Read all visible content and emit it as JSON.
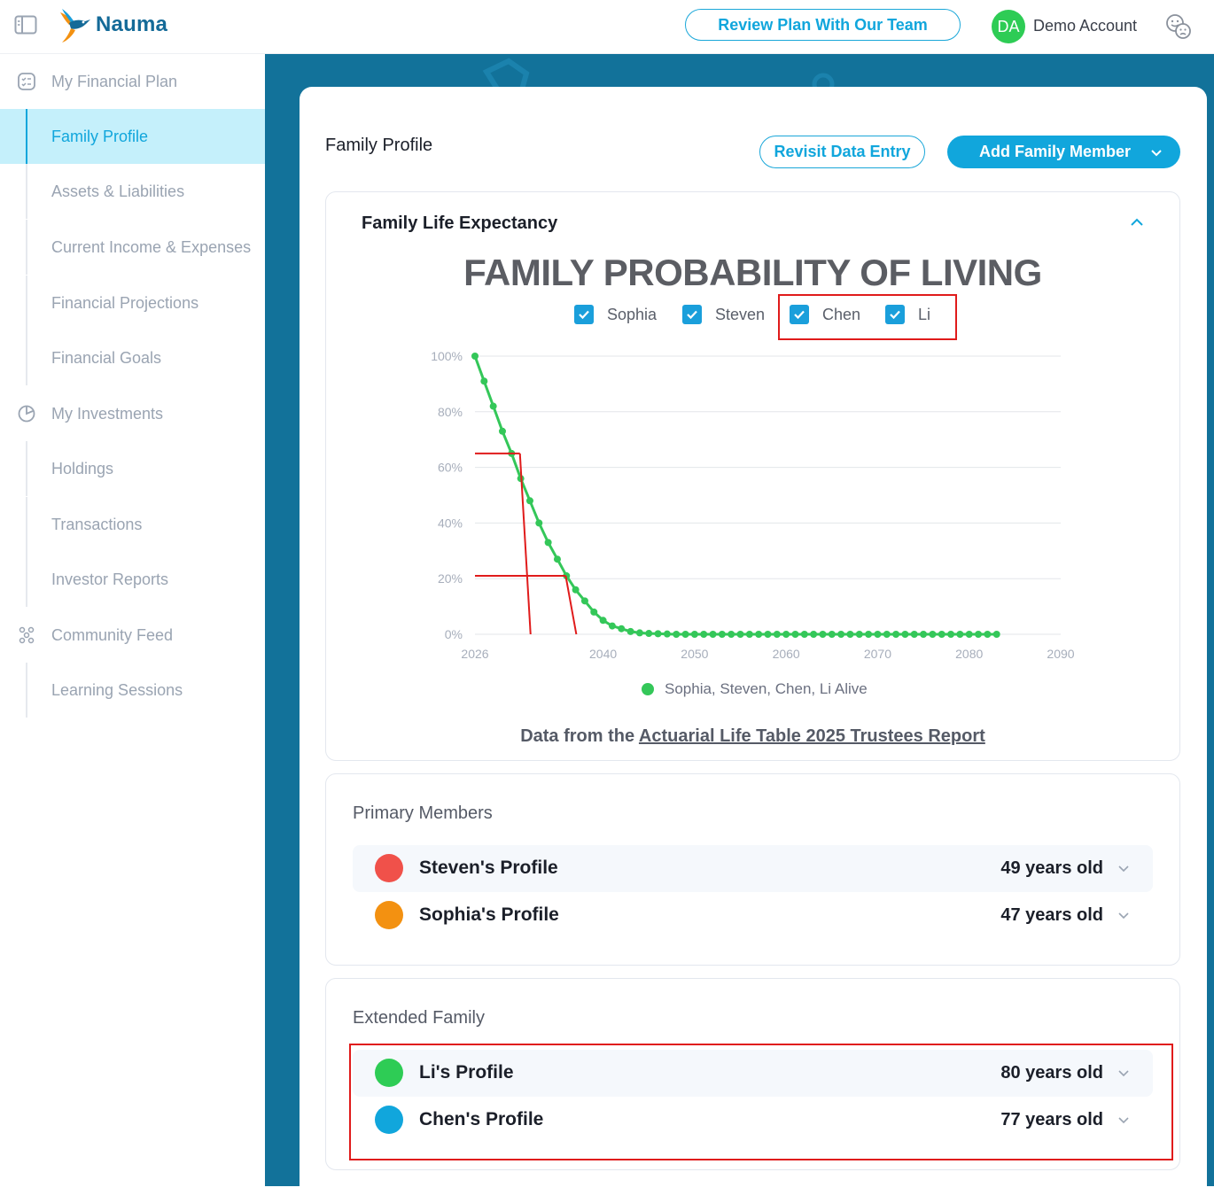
{
  "header": {
    "brand": "Nauma",
    "review_button": "Review Plan With Our Team",
    "avatar_initials": "DA",
    "account_name": "Demo Account"
  },
  "sidebar": {
    "items": [
      {
        "label": "My Financial Plan",
        "icon": "checklist-icon"
      },
      {
        "label": "Family Profile",
        "active": true
      },
      {
        "label": "Assets & Liabilities"
      },
      {
        "label": "Current Income & Expenses"
      },
      {
        "label": "Financial Projections"
      },
      {
        "label": "Financial Goals"
      },
      {
        "label": "My Investments",
        "icon": "pie-chart-icon"
      },
      {
        "label": "Holdings"
      },
      {
        "label": "Transactions"
      },
      {
        "label": "Investor Reports"
      },
      {
        "label": "Community Feed",
        "icon": "community-icon"
      },
      {
        "label": "Learning Sessions"
      }
    ]
  },
  "page": {
    "title": "Family Profile",
    "revisit_button": "Revisit Data Entry",
    "add_member_button": "Add Family Member"
  },
  "life_card": {
    "title": "Family Life Expectancy",
    "chart_title": "FAMILY PROBABILITY OF LIVING",
    "checkboxes": [
      {
        "label": "Sophia",
        "checked": true
      },
      {
        "label": "Steven",
        "checked": true
      },
      {
        "label": "Chen",
        "checked": true
      },
      {
        "label": "Li",
        "checked": true
      }
    ],
    "series_legend": "Sophia, Steven, Chen, Li Alive",
    "source_prefix": "Data from the",
    "source_link": "Actuarial Life Table 2025 Trustees Report"
  },
  "chart_data": {
    "type": "line",
    "series": [
      {
        "name": "Sophia, Steven, Chen, Li Alive",
        "color": "#34c759",
        "x": [
          2026,
          2027,
          2028,
          2029,
          2030,
          2031,
          2032,
          2033,
          2034,
          2035,
          2036,
          2037,
          2038,
          2039,
          2040,
          2041,
          2042,
          2043,
          2044,
          2045,
          2046,
          2047,
          2048,
          2049,
          2050,
          2051,
          2052,
          2053,
          2054,
          2055,
          2056,
          2057,
          2058,
          2059,
          2060,
          2061,
          2062,
          2063,
          2064,
          2065,
          2066,
          2067,
          2068,
          2069,
          2070,
          2071,
          2072,
          2073,
          2074,
          2075,
          2076,
          2077,
          2078,
          2079,
          2080,
          2081,
          2082,
          2083
        ],
        "values": [
          100,
          91,
          82,
          73,
          65,
          56,
          48,
          40,
          33,
          27,
          21,
          16,
          12,
          8,
          5,
          3,
          2,
          1,
          0.5,
          0.3,
          0.2,
          0.1,
          0,
          0,
          0,
          0,
          0,
          0,
          0,
          0,
          0,
          0,
          0,
          0,
          0,
          0,
          0,
          0,
          0,
          0,
          0,
          0,
          0,
          0,
          0,
          0,
          0,
          0,
          0,
          0,
          0,
          0,
          0,
          0,
          0,
          0,
          0,
          0
        ]
      }
    ],
    "xlim": [
      2026,
      2090
    ],
    "ylim": [
      0,
      100
    ],
    "x_ticks": [
      "2026",
      "2040",
      "2050",
      "2060",
      "2070",
      "2080",
      "2090"
    ],
    "y_ticks": [
      "0%",
      "20%",
      "40%",
      "60%",
      "80%",
      "100%"
    ],
    "grid": true,
    "annotations": [
      {
        "type": "red-guide",
        "y": 65,
        "x_drop": 2031
      },
      {
        "type": "red-guide",
        "y": 21,
        "x_drop": 2036
      }
    ]
  },
  "primary": {
    "title": "Primary Members",
    "members": [
      {
        "name": "Steven's Profile",
        "age": "49 years old",
        "color": "#f0514a"
      },
      {
        "name": "Sophia's Profile",
        "age": "47 years old",
        "color": "#f39111"
      }
    ]
  },
  "extended": {
    "title": "Extended Family",
    "members": [
      {
        "name": "Li's Profile",
        "age": "80 years old",
        "color": "#2ecc55"
      },
      {
        "name": "Chen's Profile",
        "age": "77 years old",
        "color": "#11a6dc"
      }
    ]
  }
}
